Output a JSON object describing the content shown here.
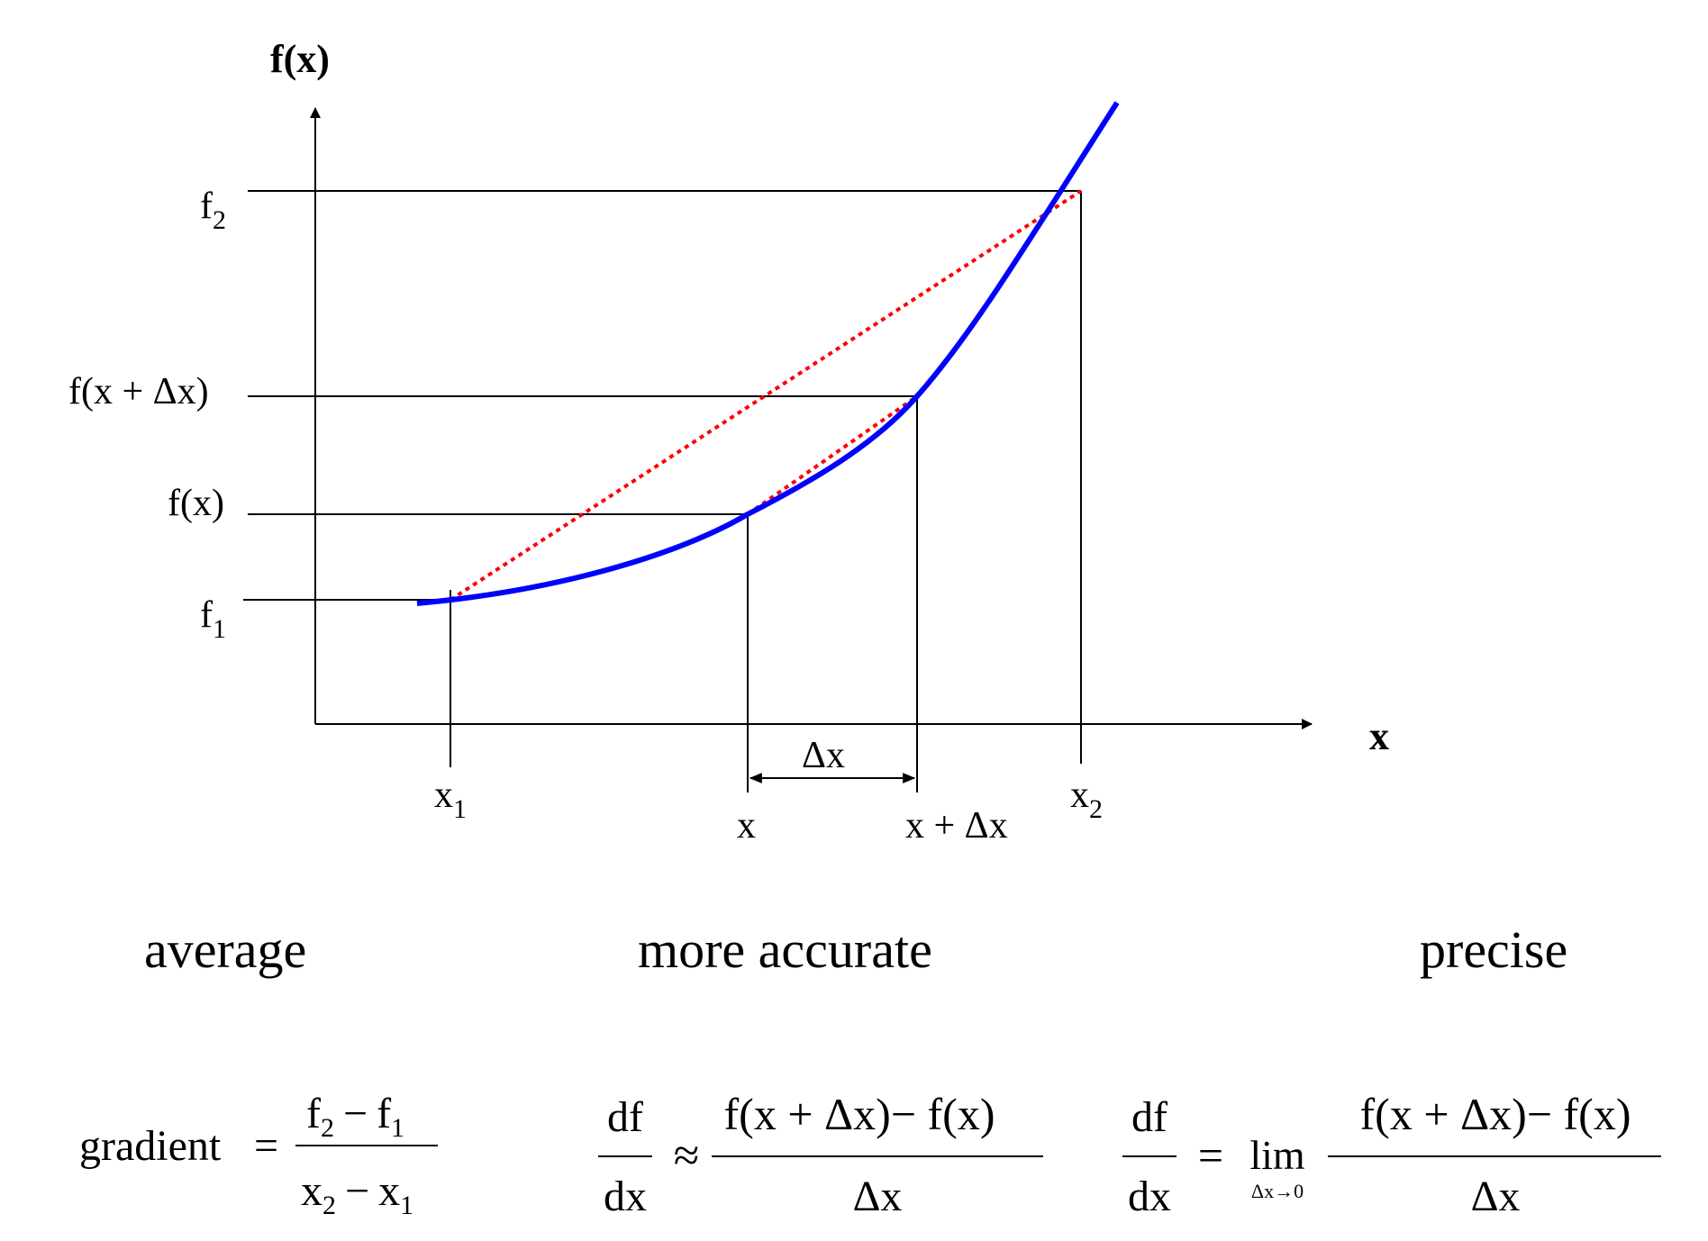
{
  "axes": {
    "y_label": "f(x)",
    "x_label": "x"
  },
  "y_ticks": {
    "f2": {
      "base": "f",
      "sub": "2"
    },
    "fxdx": "f(x + Δx)",
    "fx": "f(x)",
    "f1": {
      "base": "f",
      "sub": "1"
    }
  },
  "x_ticks": {
    "x1": {
      "base": "x",
      "sub": "1"
    },
    "x": "x",
    "xdx": "x + Δx",
    "x2": {
      "base": "x",
      "sub": "2"
    },
    "dx": "Δx"
  },
  "captions": {
    "average": "average",
    "more_accurate": "more accurate",
    "precise": "precise"
  },
  "formulas": {
    "gradient": {
      "lhs": "gradient",
      "eq": "=",
      "num": {
        "a": "f",
        "a_sub": "2",
        "op": "−",
        "b": "f",
        "b_sub": "1"
      },
      "den": {
        "a": "x",
        "a_sub": "2",
        "op": "−",
        "b": "x",
        "b_sub": "1"
      }
    },
    "approx": {
      "lhs_num": "df",
      "lhs_den": "dx",
      "rel": "≈",
      "num": "f(x + Δx)− f(x)",
      "den": "Δx"
    },
    "limit": {
      "lhs_num": "df",
      "lhs_den": "dx",
      "rel": "=",
      "lim": "lim",
      "lim_sub": "Δx→0",
      "num": "f(x + Δx)− f(x)",
      "den": "Δx"
    }
  },
  "colors": {
    "curve": "#0000ff",
    "secant": "#ff0000",
    "lines": "#000000"
  }
}
